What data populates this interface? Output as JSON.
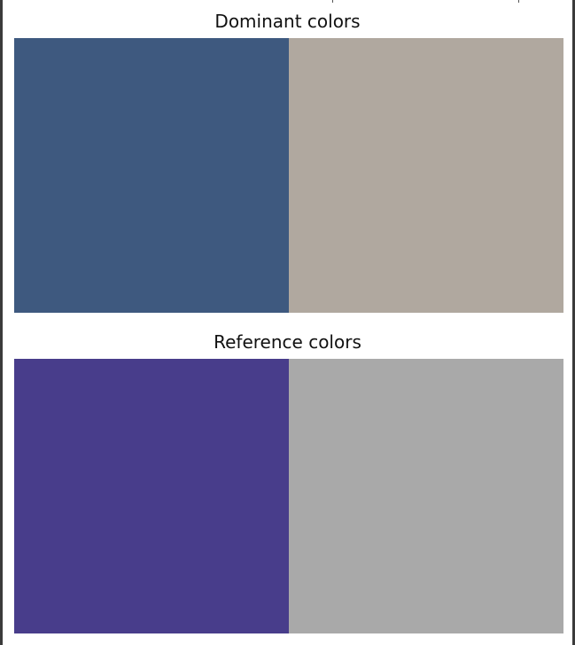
{
  "figure": {
    "panels": [
      {
        "title": "Dominant colors",
        "swatches": [
          {
            "name": "dominant-color-1",
            "color": "#3e597f"
          },
          {
            "name": "dominant-color-2",
            "color": "#b0a89f"
          }
        ]
      },
      {
        "title": "Reference colors",
        "swatches": [
          {
            "name": "reference-color-1",
            "color": "#483d8b"
          },
          {
            "name": "reference-color-2",
            "color": "#a9a9a9"
          }
        ]
      }
    ]
  }
}
